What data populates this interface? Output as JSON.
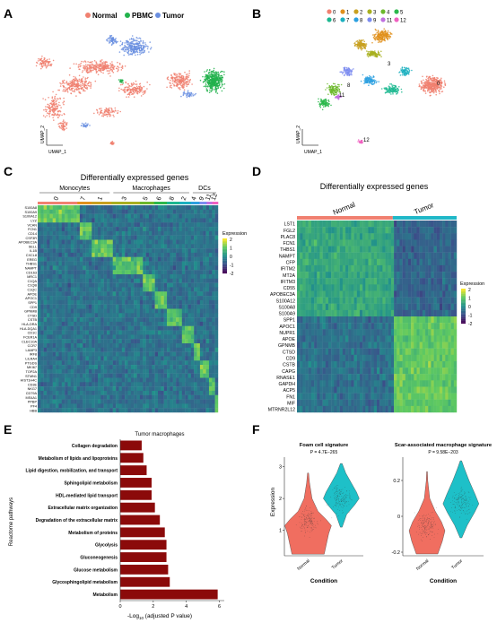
{
  "panels": {
    "a": {
      "letter": "A",
      "legend": [
        {
          "name": "Normal",
          "color": "#f08070"
        },
        {
          "name": "PBMC",
          "color": "#22b24c"
        },
        {
          "name": "Tumor",
          "color": "#6a8fe0"
        }
      ],
      "xlabel": "UMAP_1",
      "ylabel": "UMAP_2"
    },
    "b": {
      "letter": "B",
      "legend": [
        {
          "name": "0",
          "color": "#f08070"
        },
        {
          "name": "1",
          "color": "#e0901c"
        },
        {
          "name": "2",
          "color": "#c8a020"
        },
        {
          "name": "3",
          "color": "#a8b020"
        },
        {
          "name": "4",
          "color": "#6cb82c"
        },
        {
          "name": "5",
          "color": "#2cb84c"
        },
        {
          "name": "6",
          "color": "#1cb890"
        },
        {
          "name": "7",
          "color": "#1cb0c0"
        },
        {
          "name": "8",
          "color": "#2ca0e0"
        },
        {
          "name": "9",
          "color": "#7c8cf0"
        },
        {
          "name": "11",
          "color": "#c070e0"
        },
        {
          "name": "12",
          "color": "#f060c0"
        }
      ],
      "cluster_labels": [
        "0",
        "3",
        "8",
        "11",
        "12"
      ],
      "xlabel": "UMAP_1",
      "ylabel": "UMAP_2"
    },
    "c": {
      "letter": "C",
      "title": "Differentially expressed genes",
      "groups": [
        "Monocytes",
        "Macrophages",
        "DCs"
      ],
      "clusters": [
        "0",
        "7",
        "1",
        "3",
        "5",
        "6",
        "8",
        "2",
        "4",
        "9",
        "11",
        "12"
      ],
      "legend_title": "Expression",
      "legend_ticks": [
        "2",
        "1",
        "0",
        "-1",
        "-2"
      ],
      "genes": [
        "S100A8",
        "S100A9",
        "S100A12",
        "LYZ",
        "VCAN",
        "FCN1",
        "CD14",
        "CSF3R",
        "APOBEC3A",
        "SELL",
        "IL1B",
        "CXCL8",
        "EREG",
        "THBS1",
        "NAMPT",
        "CD163",
        "MRC1",
        "C1QA",
        "C1QB",
        "C1QC",
        "APOE",
        "APOC1",
        "SPP1",
        "CD9",
        "GPNMB",
        "CTSD",
        "CSTB",
        "HLA-DRA",
        "HLA-DQA1",
        "CD1C",
        "FCER1A",
        "CLEC10A",
        "CCR7",
        "LAMP3",
        "IRF8",
        "LILRA4",
        "PTGDS",
        "MKI67",
        "TOP2A",
        "STMN1",
        "HIST1H4C",
        "CD3E",
        "NKG7",
        "CD79A",
        "MS4A1",
        "PPBP",
        "PF4",
        "HBB"
      ]
    },
    "d": {
      "letter": "D",
      "title": "Differentially expressed genes",
      "conditions": [
        {
          "name": "Normal",
          "color": "#f08070"
        },
        {
          "name": "Tumor",
          "color": "#20b8c8"
        }
      ],
      "legend_title": "Expression",
      "legend_ticks": [
        "2",
        "1",
        "0",
        "-1",
        "-2"
      ],
      "genes": [
        "LST1",
        "FGL2",
        "PLAC8",
        "FCN1",
        "THBS1",
        "NAMPT",
        "CFP",
        "IFITM2",
        "MT2A",
        "IFITM3",
        "CD55",
        "APOBEC3A",
        "S100A12",
        "S100A8",
        "S100A9",
        "SPP1",
        "APOC1",
        "NUPR1",
        "APOE",
        "GPNMB",
        "CTSD",
        "CD9",
        "CSTB",
        "CAPG",
        "RNASE1",
        "GAPDH",
        "ACP5",
        "FN1",
        "MIF",
        "MTRNR2L12"
      ]
    },
    "e": {
      "letter": "E",
      "title": "Tumor macrophages",
      "ylabel": "Reactome pathways",
      "xlabel_pre": "-Log",
      "xlabel_sub": "10",
      "xlabel_post": " (adjusted P value)"
    },
    "f": {
      "letter": "F",
      "ylabel": "Expression",
      "xlabel": "Condition"
    }
  },
  "chart_data": [
    {
      "type": "bar",
      "title": "Tumor macrophages",
      "ylabel": "Reactome pathways",
      "xlabel": "-Log10 (adjusted P value)",
      "orientation": "horizontal",
      "categories": [
        "Collagen degradation",
        "Metabolism of lipids and lipoproteins",
        "Lipid digestion, mobilization, and transport",
        "Sphingolipid metabolism",
        "HDL-mediated lipid transport",
        "Extracellular matrix organization",
        "Degradation of the extracellular matrix",
        "Metabolism of proteins",
        "Glycolysis",
        "Gluconeogenesis",
        "Glucose metabolism",
        "Glycosphingolipid metabolism",
        "Metabolism"
      ],
      "values": [
        1.3,
        1.4,
        1.6,
        1.9,
        1.9,
        2.1,
        2.4,
        2.7,
        2.8,
        2.8,
        2.9,
        3.0,
        5.9
      ],
      "xticks": [
        0,
        2,
        4,
        6
      ],
      "xlim": [
        0,
        6.3
      ],
      "color": "#8b0a0a"
    },
    {
      "type": "violin",
      "title": "Foam cell signature",
      "annotation": "P = 4.7E−265",
      "xlabel": "Condition",
      "ylabel": "Expression",
      "categories": [
        "Normal",
        "Tumor"
      ],
      "colors": [
        "#f06e60",
        "#1ec0c8"
      ],
      "medians": [
        1.3,
        2.0
      ],
      "yticks": [
        1,
        2,
        3
      ],
      "ylim": [
        0.2,
        3.3
      ]
    },
    {
      "type": "violin",
      "title": "Scar-associated macrophage signature",
      "annotation": "P = 9.58E−203",
      "xlabel": "Condition",
      "ylabel": "",
      "categories": [
        "Normal",
        "Tumor"
      ],
      "colors": [
        "#f06e60",
        "#1ec0c8"
      ],
      "medians": [
        -0.05,
        0.08
      ],
      "yticks": [
        -0.2,
        0.0,
        0.2
      ],
      "ylim": [
        -0.22,
        0.33
      ]
    }
  ]
}
